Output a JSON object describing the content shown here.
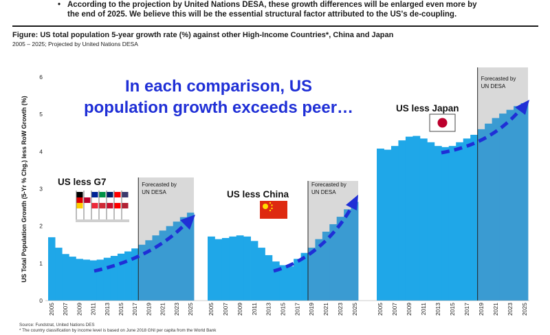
{
  "header": {
    "bullet_line1": "According to the projection by United Nations DESA, these growth differences will be enlarged even more by",
    "bullet_line2": "the end of 2025. We believe this will be the essential structural factor attributed to the US's de-coupling.",
    "figure_title": "Figure: US total population 5-year growth rate (%) against other High-Income Countries*, China and Japan",
    "figure_subtitle": "2005 – 2025; Projected by United Nations DESA"
  },
  "footer": {
    "source": "Source: Fundstrat, United Nations DES",
    "note": "* The country classification by income level is based on June 2018 GNI per capita from the World Bank"
  },
  "colors": {
    "bar_actual": "#1fa7e8",
    "bar_forecast": "#3a9bd2",
    "forecast_bg": "#d9d9d9",
    "arrow": "#1f2fd6",
    "annotation": "#1f2fd6"
  },
  "chart_data": {
    "type": "bar",
    "ylabel": "US Total Population Growth (5-Yr % Chg.) less RoW Growth (%)",
    "ylim": [
      0,
      6
    ],
    "yticks": [
      0,
      1,
      2,
      3,
      4,
      5,
      6
    ],
    "annotation_line1": "In each comparison, US",
    "annotation_line2": "population growth exceeds peer…",
    "x_tick_labels": [
      "2005",
      "2007",
      "2009",
      "2011",
      "2013",
      "2015",
      "2017",
      "2019",
      "2021",
      "2023",
      "2025"
    ],
    "panels": [
      {
        "label": "US less G7",
        "forecast_label_1": "Forecasted by",
        "forecast_label_2": "UN DESA",
        "forecast_from": 2018,
        "icon": "g7-flags-icon",
        "years": [
          2005,
          2006,
          2007,
          2008,
          2009,
          2010,
          2011,
          2012,
          2013,
          2014,
          2015,
          2016,
          2017,
          2018,
          2019,
          2020,
          2021,
          2022,
          2023,
          2024,
          2025
        ],
        "values": [
          1.7,
          1.42,
          1.25,
          1.18,
          1.12,
          1.1,
          1.08,
          1.1,
          1.15,
          1.2,
          1.26,
          1.32,
          1.4,
          1.5,
          1.62,
          1.75,
          1.88,
          2.0,
          2.12,
          2.24,
          2.36
        ]
      },
      {
        "label": "US less China",
        "forecast_label_1": "Forecasted by",
        "forecast_label_2": "UN DESA",
        "forecast_from": 2019,
        "icon": "china-flag-icon",
        "years": [
          2005,
          2006,
          2007,
          2008,
          2009,
          2010,
          2011,
          2012,
          2013,
          2014,
          2015,
          2016,
          2017,
          2018,
          2019,
          2020,
          2021,
          2022,
          2023,
          2024,
          2025
        ],
        "values": [
          1.72,
          1.65,
          1.68,
          1.72,
          1.75,
          1.72,
          1.6,
          1.42,
          1.22,
          1.05,
          0.95,
          0.92,
          1.12,
          1.28,
          1.42,
          1.65,
          1.85,
          2.05,
          2.25,
          2.45,
          2.65
        ]
      },
      {
        "label": "US less Japan",
        "forecast_label_1": "Forecasted by",
        "forecast_label_2": "UN DESA",
        "forecast_from": 2019,
        "icon": "japan-flag-icon",
        "years": [
          2005,
          2006,
          2007,
          2008,
          2009,
          2010,
          2011,
          2012,
          2013,
          2014,
          2015,
          2016,
          2017,
          2018,
          2019,
          2020,
          2021,
          2022,
          2023,
          2024,
          2025
        ],
        "values": [
          4.08,
          4.05,
          4.15,
          4.3,
          4.4,
          4.42,
          4.35,
          4.25,
          4.15,
          4.12,
          4.15,
          4.25,
          4.35,
          4.45,
          4.6,
          4.75,
          4.9,
          5.02,
          5.12,
          5.22,
          5.3
        ]
      }
    ]
  }
}
